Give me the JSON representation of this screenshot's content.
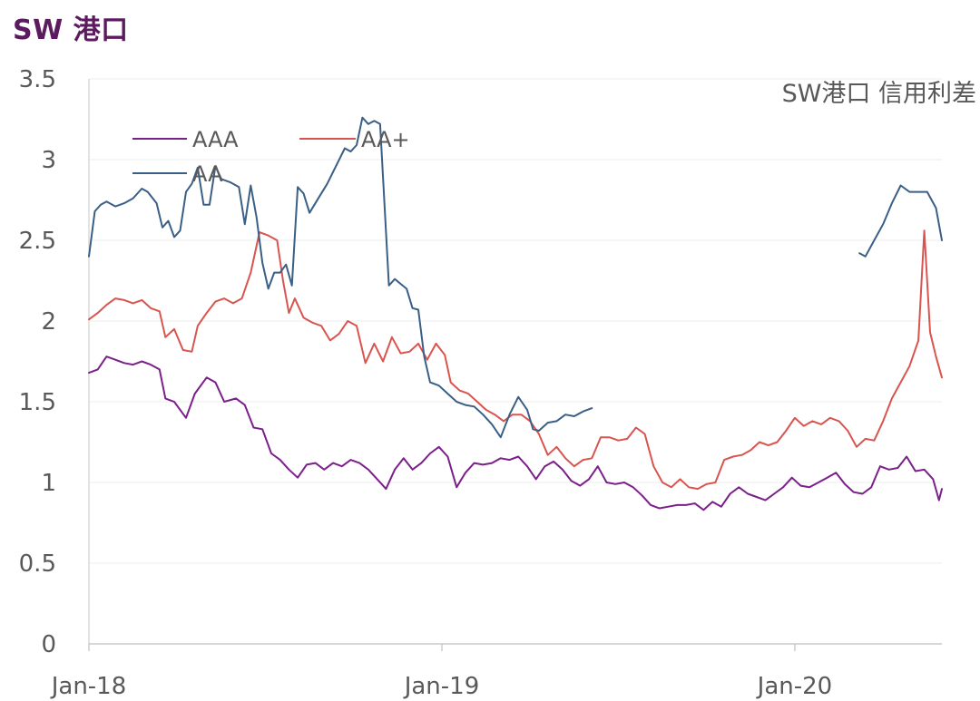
{
  "page": {
    "title": "SW 港口"
  },
  "chart_data": {
    "type": "line",
    "title": "SW港口 信用利差",
    "xlabel": "",
    "ylabel": "",
    "ylim": [
      0,
      3.5
    ],
    "yticks": [
      "0",
      "0.5",
      "1",
      "1.5",
      "2",
      "2.5",
      "3",
      "3.5"
    ],
    "xticks": [
      {
        "label": "Jan-18",
        "x": 0
      },
      {
        "label": "Jan-19",
        "x": 12
      },
      {
        "label": "Jan-20",
        "x": 24
      }
    ],
    "xlim": [
      0,
      29
    ],
    "x_unit": "months since Jan-18",
    "grid": "horizontal",
    "legend_position": "top-left",
    "series": [
      {
        "name": "AAA",
        "color": "#7b1f8a",
        "points": [
          [
            0,
            1.68
          ],
          [
            0.3,
            1.7
          ],
          [
            0.6,
            1.78
          ],
          [
            0.9,
            1.76
          ],
          [
            1.2,
            1.74
          ],
          [
            1.5,
            1.73
          ],
          [
            1.8,
            1.75
          ],
          [
            2.1,
            1.73
          ],
          [
            2.4,
            1.7
          ],
          [
            2.6,
            1.52
          ],
          [
            2.9,
            1.5
          ],
          [
            3.3,
            1.4
          ],
          [
            3.6,
            1.55
          ],
          [
            4.0,
            1.65
          ],
          [
            4.3,
            1.62
          ],
          [
            4.6,
            1.5
          ],
          [
            5.0,
            1.52
          ],
          [
            5.3,
            1.48
          ],
          [
            5.6,
            1.34
          ],
          [
            5.9,
            1.33
          ],
          [
            6.2,
            1.18
          ],
          [
            6.5,
            1.14
          ],
          [
            6.8,
            1.08
          ],
          [
            7.1,
            1.03
          ],
          [
            7.4,
            1.11
          ],
          [
            7.7,
            1.12
          ],
          [
            8.0,
            1.08
          ],
          [
            8.3,
            1.12
          ],
          [
            8.6,
            1.1
          ],
          [
            8.9,
            1.14
          ],
          [
            9.2,
            1.12
          ],
          [
            9.5,
            1.08
          ],
          [
            9.8,
            1.02
          ],
          [
            10.1,
            0.96
          ],
          [
            10.4,
            1.08
          ],
          [
            10.7,
            1.15
          ],
          [
            11.0,
            1.08
          ],
          [
            11.3,
            1.12
          ],
          [
            11.6,
            1.18
          ],
          [
            11.9,
            1.22
          ],
          [
            12.2,
            1.16
          ],
          [
            12.5,
            0.97
          ],
          [
            12.8,
            1.06
          ],
          [
            13.1,
            1.12
          ],
          [
            13.4,
            1.11
          ],
          [
            13.7,
            1.12
          ],
          [
            14.0,
            1.15
          ],
          [
            14.3,
            1.14
          ],
          [
            14.6,
            1.16
          ],
          [
            14.9,
            1.1
          ],
          [
            15.2,
            1.02
          ],
          [
            15.5,
            1.1
          ],
          [
            15.8,
            1.13
          ],
          [
            16.1,
            1.08
          ],
          [
            16.4,
            1.01
          ],
          [
            16.7,
            0.98
          ],
          [
            17.0,
            1.02
          ],
          [
            17.3,
            1.1
          ],
          [
            17.6,
            1.0
          ],
          [
            17.9,
            0.99
          ],
          [
            18.2,
            1.0
          ],
          [
            18.5,
            0.97
          ],
          [
            18.8,
            0.92
          ],
          [
            19.1,
            0.86
          ],
          [
            19.4,
            0.84
          ],
          [
            19.7,
            0.85
          ],
          [
            20.0,
            0.86
          ],
          [
            20.3,
            0.86
          ],
          [
            20.6,
            0.87
          ],
          [
            20.9,
            0.83
          ],
          [
            21.2,
            0.88
          ],
          [
            21.5,
            0.85
          ],
          [
            21.8,
            0.93
          ],
          [
            22.1,
            0.97
          ],
          [
            22.4,
            0.93
          ],
          [
            22.7,
            0.91
          ],
          [
            23.0,
            0.89
          ],
          [
            23.3,
            0.93
          ],
          [
            23.6,
            0.97
          ],
          [
            23.9,
            1.03
          ],
          [
            24.2,
            0.98
          ],
          [
            24.5,
            0.97
          ],
          [
            24.8,
            1.0
          ],
          [
            25.1,
            1.03
          ],
          [
            25.4,
            1.06
          ],
          [
            25.7,
            0.99
          ],
          [
            26.0,
            0.94
          ],
          [
            26.3,
            0.93
          ],
          [
            26.6,
            0.97
          ],
          [
            26.9,
            1.1
          ],
          [
            27.2,
            1.08
          ],
          [
            27.5,
            1.09
          ],
          [
            27.8,
            1.16
          ],
          [
            28.1,
            1.07
          ],
          [
            28.4,
            1.08
          ],
          [
            28.7,
            1.02
          ],
          [
            28.9,
            0.89
          ],
          [
            29.0,
            0.96
          ]
        ]
      },
      {
        "name": "AA+",
        "color": "#d9544f",
        "points": [
          [
            0,
            2.01
          ],
          [
            0.3,
            2.05
          ],
          [
            0.6,
            2.1
          ],
          [
            0.9,
            2.14
          ],
          [
            1.2,
            2.13
          ],
          [
            1.5,
            2.11
          ],
          [
            1.8,
            2.13
          ],
          [
            2.1,
            2.08
          ],
          [
            2.4,
            2.06
          ],
          [
            2.6,
            1.9
          ],
          [
            2.9,
            1.95
          ],
          [
            3.2,
            1.82
          ],
          [
            3.5,
            1.81
          ],
          [
            3.7,
            1.97
          ],
          [
            4.0,
            2.05
          ],
          [
            4.3,
            2.12
          ],
          [
            4.6,
            2.14
          ],
          [
            4.9,
            2.11
          ],
          [
            5.2,
            2.14
          ],
          [
            5.5,
            2.3
          ],
          [
            5.8,
            2.55
          ],
          [
            6.1,
            2.53
          ],
          [
            6.4,
            2.5
          ],
          [
            6.6,
            2.25
          ],
          [
            6.8,
            2.05
          ],
          [
            7.0,
            2.14
          ],
          [
            7.3,
            2.02
          ],
          [
            7.6,
            1.99
          ],
          [
            7.9,
            1.97
          ],
          [
            8.2,
            1.88
          ],
          [
            8.5,
            1.92
          ],
          [
            8.8,
            2.0
          ],
          [
            9.1,
            1.97
          ],
          [
            9.4,
            1.74
          ],
          [
            9.7,
            1.86
          ],
          [
            10.0,
            1.75
          ],
          [
            10.3,
            1.9
          ],
          [
            10.6,
            1.8
          ],
          [
            10.9,
            1.81
          ],
          [
            11.2,
            1.86
          ],
          [
            11.5,
            1.76
          ],
          [
            11.8,
            1.86
          ],
          [
            12.1,
            1.79
          ],
          [
            12.3,
            1.62
          ],
          [
            12.6,
            1.57
          ],
          [
            12.9,
            1.55
          ],
          [
            13.2,
            1.5
          ],
          [
            13.5,
            1.45
          ],
          [
            13.8,
            1.42
          ],
          [
            14.1,
            1.38
          ],
          [
            14.4,
            1.42
          ],
          [
            14.7,
            1.42
          ],
          [
            15.0,
            1.38
          ],
          [
            15.3,
            1.3
          ],
          [
            15.6,
            1.17
          ],
          [
            15.9,
            1.22
          ],
          [
            16.2,
            1.15
          ],
          [
            16.5,
            1.1
          ],
          [
            16.8,
            1.14
          ],
          [
            17.1,
            1.15
          ],
          [
            17.4,
            1.28
          ],
          [
            17.7,
            1.28
          ],
          [
            18.0,
            1.26
          ],
          [
            18.3,
            1.27
          ],
          [
            18.6,
            1.34
          ],
          [
            18.9,
            1.3
          ],
          [
            19.2,
            1.1
          ],
          [
            19.5,
            1.0
          ],
          [
            19.8,
            0.97
          ],
          [
            20.1,
            1.02
          ],
          [
            20.4,
            0.97
          ],
          [
            20.7,
            0.96
          ],
          [
            21.0,
            0.99
          ],
          [
            21.3,
            1.0
          ],
          [
            21.6,
            1.14
          ],
          [
            21.9,
            1.16
          ],
          [
            22.2,
            1.17
          ],
          [
            22.5,
            1.2
          ],
          [
            22.8,
            1.25
          ],
          [
            23.1,
            1.23
          ],
          [
            23.4,
            1.25
          ],
          [
            23.7,
            1.32
          ],
          [
            24.0,
            1.4
          ],
          [
            24.3,
            1.35
          ],
          [
            24.6,
            1.38
          ],
          [
            24.9,
            1.36
          ],
          [
            25.2,
            1.4
          ],
          [
            25.5,
            1.38
          ],
          [
            25.8,
            1.32
          ],
          [
            26.1,
            1.22
          ],
          [
            26.4,
            1.27
          ],
          [
            26.7,
            1.26
          ],
          [
            27.0,
            1.38
          ],
          [
            27.3,
            1.52
          ],
          [
            27.6,
            1.62
          ],
          [
            27.9,
            1.72
          ],
          [
            28.2,
            1.88
          ],
          [
            28.4,
            2.56
          ],
          [
            28.6,
            1.93
          ],
          [
            28.8,
            1.78
          ],
          [
            29.0,
            1.65
          ]
        ]
      },
      {
        "name": "AA",
        "color": "#3a5f86",
        "points": [
          [
            0,
            2.4
          ],
          [
            0.2,
            2.68
          ],
          [
            0.4,
            2.72
          ],
          [
            0.6,
            2.74
          ],
          [
            0.9,
            2.71
          ],
          [
            1.2,
            2.73
          ],
          [
            1.5,
            2.76
          ],
          [
            1.8,
            2.82
          ],
          [
            2.0,
            2.8
          ],
          [
            2.3,
            2.73
          ],
          [
            2.5,
            2.58
          ],
          [
            2.7,
            2.62
          ],
          [
            2.9,
            2.52
          ],
          [
            3.1,
            2.56
          ],
          [
            3.3,
            2.8
          ],
          [
            3.5,
            2.85
          ],
          [
            3.7,
            2.95
          ],
          [
            3.9,
            2.72
          ],
          [
            4.1,
            2.72
          ],
          [
            4.3,
            2.96
          ],
          [
            4.5,
            2.88
          ],
          [
            4.8,
            2.86
          ],
          [
            5.1,
            2.83
          ],
          [
            5.3,
            2.6
          ],
          [
            5.5,
            2.84
          ],
          [
            5.7,
            2.64
          ],
          [
            5.9,
            2.36
          ],
          [
            6.1,
            2.2
          ],
          [
            6.3,
            2.3
          ],
          [
            6.5,
            2.3
          ],
          [
            6.7,
            2.35
          ],
          [
            6.9,
            2.22
          ],
          [
            7.1,
            2.83
          ],
          [
            7.3,
            2.79
          ],
          [
            7.5,
            2.67
          ],
          [
            7.8,
            2.76
          ],
          [
            8.1,
            2.85
          ],
          [
            8.4,
            2.96
          ],
          [
            8.7,
            3.07
          ],
          [
            8.9,
            3.05
          ],
          [
            9.1,
            3.09
          ],
          [
            9.3,
            3.26
          ],
          [
            9.5,
            3.22
          ],
          [
            9.7,
            3.24
          ],
          [
            9.9,
            3.22
          ],
          [
            10.2,
            2.22
          ],
          [
            10.4,
            2.26
          ],
          [
            10.6,
            2.23
          ],
          [
            10.8,
            2.2
          ],
          [
            11.0,
            2.08
          ],
          [
            11.2,
            2.07
          ],
          [
            11.4,
            1.78
          ],
          [
            11.6,
            1.62
          ],
          [
            11.9,
            1.6
          ],
          [
            12.2,
            1.55
          ],
          [
            12.5,
            1.5
          ],
          [
            12.8,
            1.48
          ],
          [
            13.1,
            1.47
          ],
          [
            13.4,
            1.42
          ],
          [
            13.7,
            1.36
          ],
          [
            14.0,
            1.28
          ],
          [
            14.3,
            1.42
          ],
          [
            14.6,
            1.53
          ],
          [
            14.9,
            1.45
          ],
          [
            15.1,
            1.33
          ],
          [
            15.3,
            1.32
          ],
          [
            15.6,
            1.37
          ],
          [
            15.9,
            1.38
          ],
          [
            16.2,
            1.42
          ],
          [
            16.5,
            1.41
          ],
          [
            16.8,
            1.44
          ],
          [
            17.1,
            1.46
          ],
          null,
          [
            26.2,
            2.42
          ],
          [
            26.4,
            2.4
          ],
          [
            26.7,
            2.5
          ],
          [
            27.0,
            2.6
          ],
          [
            27.3,
            2.73
          ],
          [
            27.6,
            2.84
          ],
          [
            27.9,
            2.8
          ],
          [
            28.2,
            2.8
          ],
          [
            28.5,
            2.8
          ],
          [
            28.8,
            2.7
          ],
          [
            29.0,
            2.5
          ]
        ]
      }
    ]
  }
}
